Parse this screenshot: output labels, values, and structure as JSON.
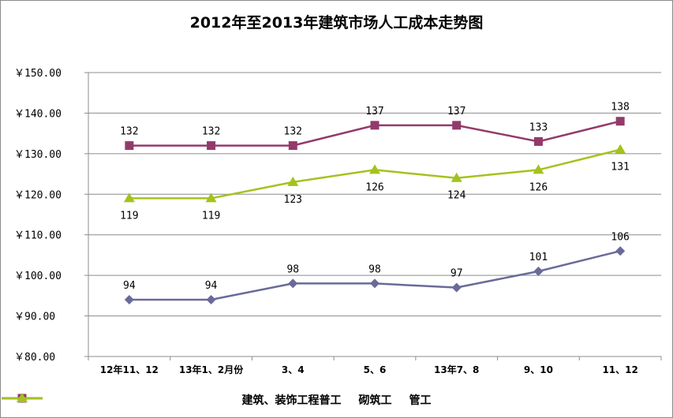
{
  "chart_data": {
    "type": "line",
    "title": "2012年至2013年建筑市场人工成本走势图",
    "categories": [
      "12年11、12",
      "13年1、2月份",
      "3、4",
      "5、6",
      "13年7、8",
      "9、10",
      "11、12"
    ],
    "ylim": [
      80,
      150
    ],
    "yticks": [
      "￥80.00",
      "￥90.00",
      "￥100.00",
      "￥110.00",
      "￥120.00",
      "￥130.00",
      "￥140.00",
      "￥150.00"
    ],
    "ytick_values": [
      80,
      90,
      100,
      110,
      120,
      130,
      140,
      150
    ],
    "grid": true,
    "legend_position": "bottom",
    "series": [
      {
        "name": "建筑、装饰工程普工",
        "color": "#6a6a9a",
        "marker": "diamond",
        "label_pos": "above",
        "values": [
          94,
          94,
          98,
          98,
          97,
          101,
          106
        ]
      },
      {
        "name": "砌筑工",
        "color": "#933a6a",
        "marker": "square",
        "label_pos": "above",
        "values": [
          132,
          132,
          132,
          137,
          137,
          133,
          138
        ]
      },
      {
        "name": "管工",
        "color": "#a4c21e",
        "marker": "triangle",
        "label_pos": "below",
        "values": [
          119,
          119,
          123,
          126,
          124,
          126,
          131
        ]
      }
    ]
  }
}
